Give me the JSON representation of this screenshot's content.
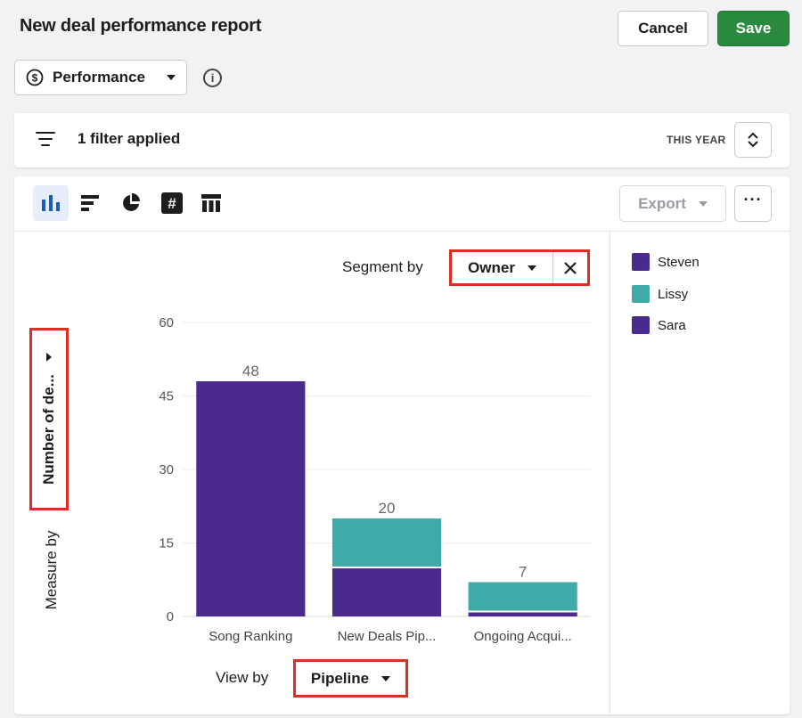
{
  "header": {
    "title": "New deal performance report",
    "cancel_label": "Cancel",
    "save_label": "Save"
  },
  "report_type": {
    "label": "Performance",
    "icon": "dollar-circle-icon"
  },
  "filter_bar": {
    "text": "1 filter applied",
    "period": "THIS YEAR"
  },
  "toolbar": {
    "view_types": [
      "bar-chart-icon",
      "horizontal-bar-icon",
      "pie-chart-icon",
      "number-icon",
      "table-icon"
    ],
    "active_view": "bar-chart-icon",
    "export_label": "Export",
    "more_label": "···"
  },
  "controls": {
    "segment_by_label": "Segment by",
    "segment_by_value": "Owner",
    "measure_by_label": "Measure by",
    "measure_by_value": "Number of de...",
    "view_by_label": "View by",
    "view_by_value": "Pipeline"
  },
  "legend": [
    {
      "name": "Steven",
      "color": "#4a2a8c"
    },
    {
      "name": "Lissy",
      "color": "#3faaa8"
    },
    {
      "name": "Sara",
      "color": "#4a2a8c"
    }
  ],
  "chart_data": {
    "type": "bar",
    "stacked": true,
    "categories": [
      "Song Ranking",
      "New Deals Pip...",
      "Ongoing Acqui..."
    ],
    "series": [
      {
        "name": "Steven",
        "values": [
          48,
          10,
          1
        ],
        "color": "#4a2a8c"
      },
      {
        "name": "Lissy",
        "values": [
          0,
          10,
          6
        ],
        "color": "#3faaa8"
      }
    ],
    "totals": [
      48,
      20,
      7
    ],
    "yticks": [
      0,
      15,
      30,
      45,
      60
    ],
    "ylim": [
      0,
      60
    ],
    "grid": true
  }
}
